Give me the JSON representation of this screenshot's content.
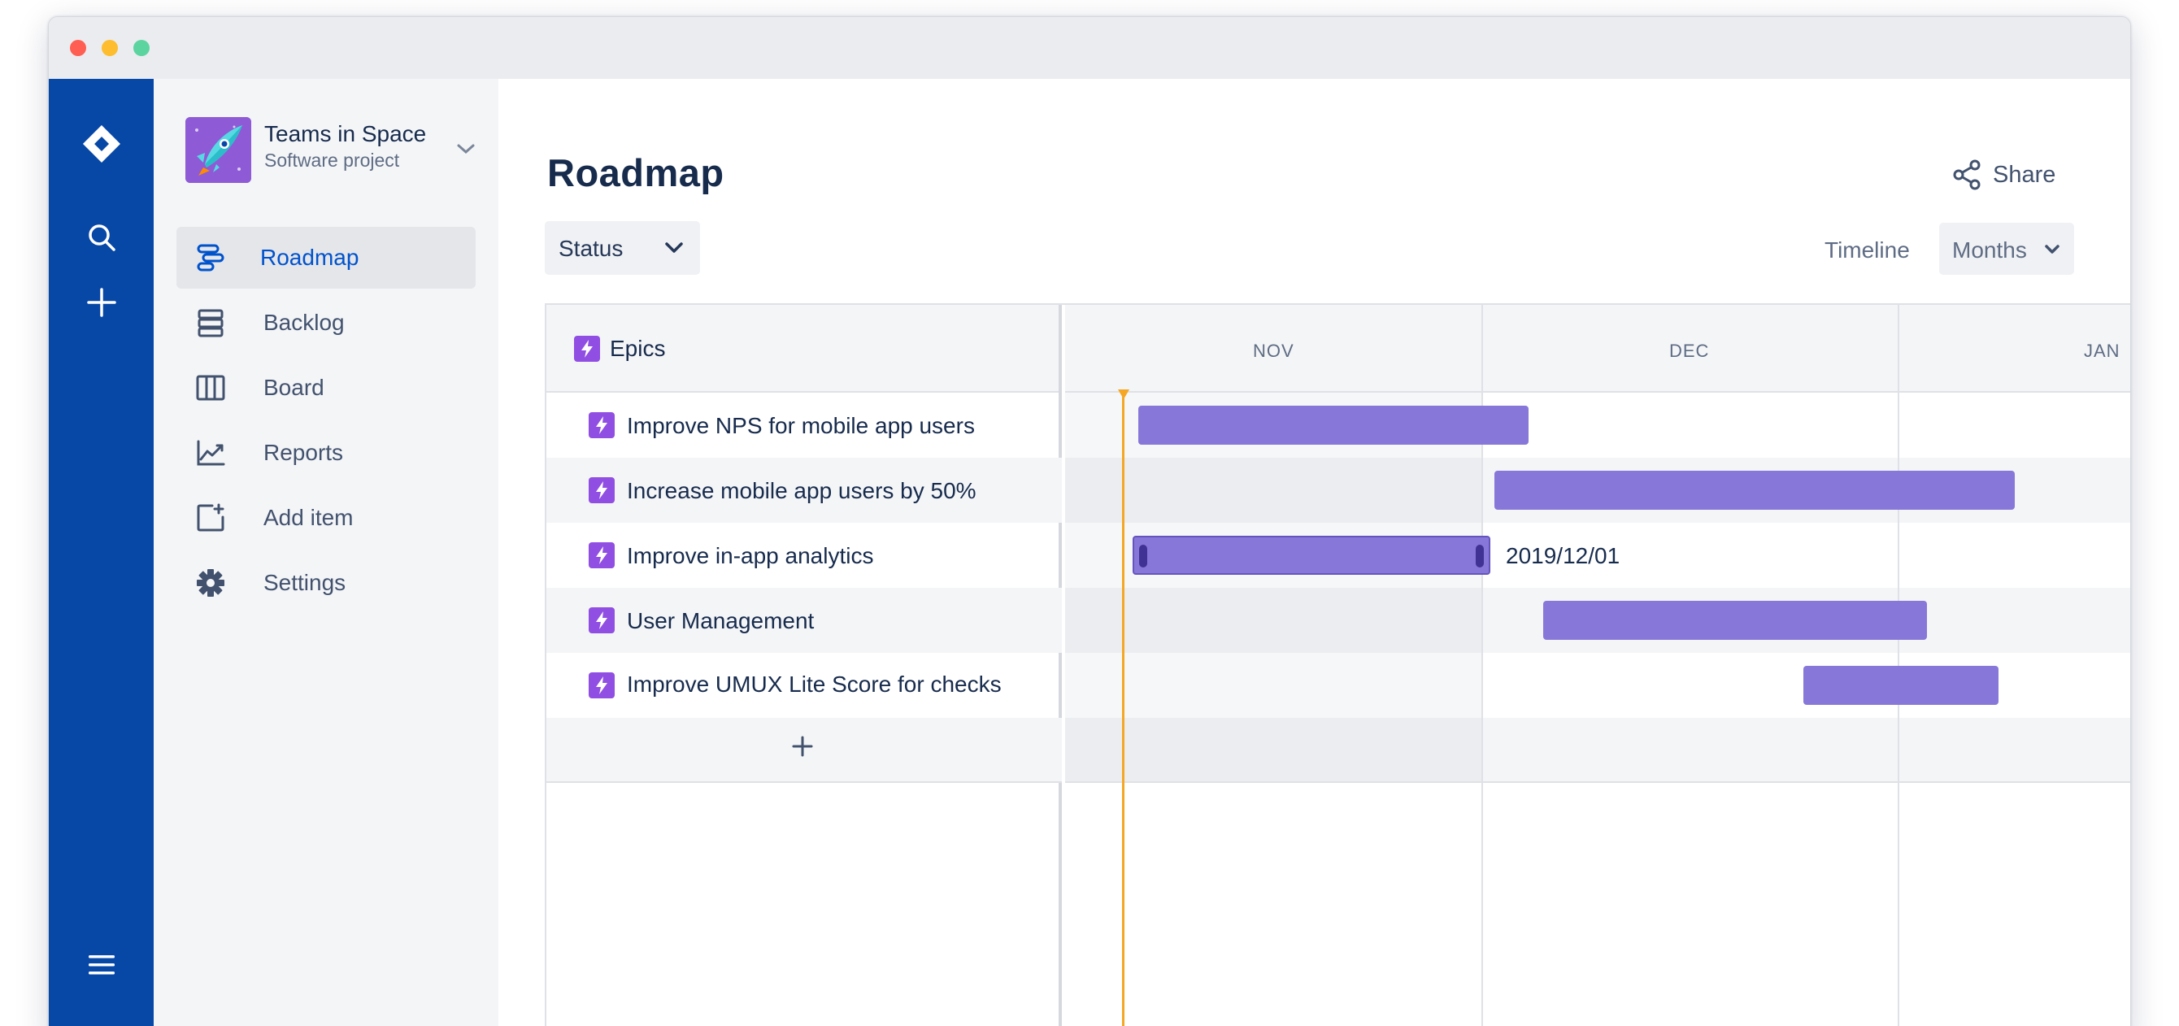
{
  "project": {
    "name": "Teams in Space",
    "type": "Software project"
  },
  "sidebar": {
    "items": [
      {
        "label": "Roadmap",
        "icon": "roadmap-icon",
        "active": true
      },
      {
        "label": "Backlog",
        "icon": "backlog-icon"
      },
      {
        "label": "Board",
        "icon": "board-icon"
      },
      {
        "label": "Reports",
        "icon": "reports-icon"
      },
      {
        "label": "Add item",
        "icon": "add-item-icon"
      },
      {
        "label": "Settings",
        "icon": "settings-icon"
      }
    ]
  },
  "page": {
    "title": "Roadmap",
    "share_label": "Share"
  },
  "filters": {
    "status_label": "Status",
    "timeline_label": "Timeline",
    "months_label": "Months"
  },
  "roadmap": {
    "epics_header": "Epics",
    "months": [
      "NOV",
      "DEC",
      "JAN"
    ],
    "epics": [
      {
        "name": "Improve NPS for mobile app users"
      },
      {
        "name": "Increase mobile app users by 50%"
      },
      {
        "name": "Improve in-app analytics",
        "date_label": "2019/12/01"
      },
      {
        "name": "User Management"
      },
      {
        "name": "Improve UMUX Lite Score for checks"
      }
    ],
    "add_label": "+"
  },
  "colors": {
    "global_nav": "#0747a6",
    "accent": "#0052cc",
    "epic_bar": "#8777d9",
    "epic_icon": "#904ee2",
    "today_marker": "#f5a623"
  }
}
